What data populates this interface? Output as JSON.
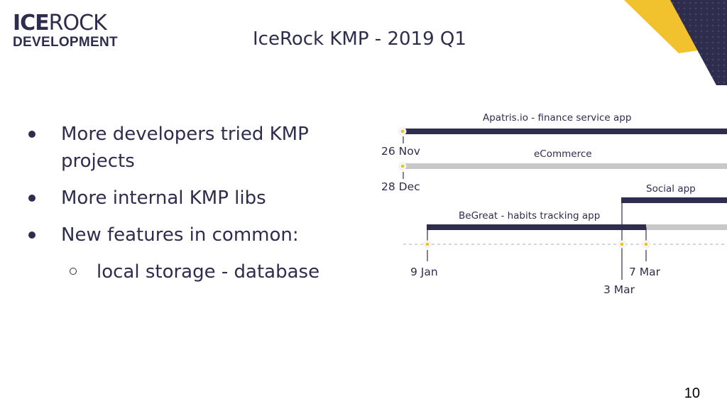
{
  "logo": {
    "bold": "ICE",
    "light": "ROCK",
    "sub": "DEVELOPMENT"
  },
  "title": "IceRock KMP - 2019 Q1",
  "bullets": [
    {
      "text": "More developers tried KMP projects",
      "level": 1
    },
    {
      "text": "More internal KMP libs",
      "level": 1
    },
    {
      "text": "New features in common:",
      "level": 1
    },
    {
      "text": "local storage - database",
      "level": 2
    }
  ],
  "timeline": {
    "projects": [
      {
        "name": "Apatris.io - finance service app",
        "start": "26 Nov",
        "color": "#2e2d4d"
      },
      {
        "name": "eCommerce",
        "start": "28 Dec",
        "color": "#c8c8c8"
      },
      {
        "name": "Social app",
        "start": "3 Mar",
        "color": "#2e2d4d"
      },
      {
        "name": "BeGreat - habits tracking app",
        "start": "9 Jan",
        "end": "7 Mar",
        "color": "#2e2d4d",
        "after_color": "#c8c8c8"
      }
    ],
    "dates": [
      "26 Nov",
      "28 Dec",
      "9 Jan",
      "3 Mar",
      "7 Mar"
    ],
    "marker_color": "#f2c12e"
  },
  "colors": {
    "navy": "#2e2d4d",
    "yellow": "#f2c12e",
    "gray": "#c8c8c8"
  },
  "page_number": "10"
}
